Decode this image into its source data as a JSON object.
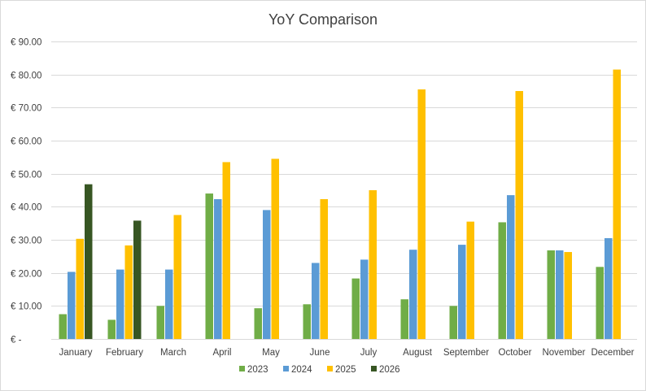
{
  "chart_data": {
    "type": "bar",
    "title": "YoY Comparison",
    "xlabel": "",
    "ylabel": "",
    "ylim": [
      0,
      90
    ],
    "y_ticks": [
      0,
      10,
      20,
      30,
      40,
      50,
      60,
      70,
      80,
      90
    ],
    "y_tick_labels": [
      "€ -",
      "€ 10.00",
      "€ 20.00",
      "€ 30.00",
      "€ 40.00",
      "€ 50.00",
      "€ 60.00",
      "€ 70.00",
      "€ 80.00",
      "€ 90.00"
    ],
    "grid": true,
    "legend_position": "bottom",
    "categories": [
      "January",
      "February",
      "March",
      "April",
      "May",
      "June",
      "July",
      "August",
      "September",
      "October",
      "November",
      "December"
    ],
    "series": [
      {
        "name": "2023",
        "color": "#70AD47",
        "values": [
          7.5,
          5.8,
          10.0,
          44.0,
          9.3,
          10.5,
          18.3,
          12.0,
          10.0,
          35.3,
          26.8,
          21.8
        ]
      },
      {
        "name": "2024",
        "color": "#5B9BD5",
        "values": [
          20.3,
          21.0,
          21.0,
          42.3,
          39.0,
          23.0,
          24.0,
          27.0,
          28.5,
          43.5,
          26.8,
          30.5
        ]
      },
      {
        "name": "2025",
        "color": "#FFC000",
        "values": [
          30.3,
          28.3,
          37.5,
          53.5,
          54.5,
          42.3,
          45.0,
          75.5,
          35.5,
          75.0,
          26.3,
          81.5
        ]
      },
      {
        "name": "2026",
        "color": "#375623",
        "values": [
          46.8,
          35.8,
          null,
          null,
          null,
          null,
          null,
          null,
          null,
          null,
          null,
          null
        ]
      }
    ]
  }
}
